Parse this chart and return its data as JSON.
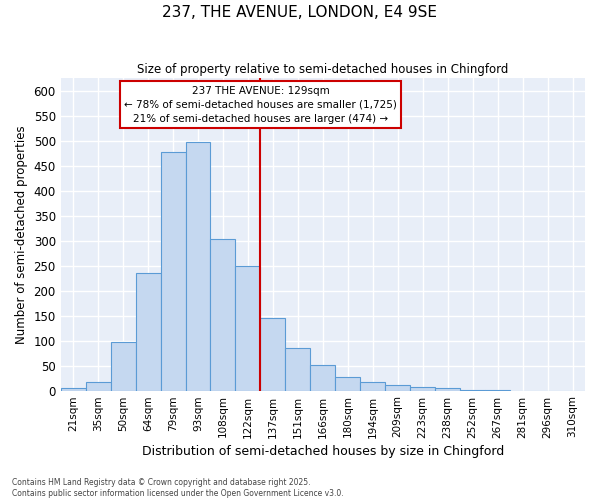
{
  "title1": "237, THE AVENUE, LONDON, E4 9SE",
  "title2": "Size of property relative to semi-detached houses in Chingford",
  "bar_labels": [
    "21sqm",
    "35sqm",
    "50sqm",
    "64sqm",
    "79sqm",
    "93sqm",
    "108sqm",
    "122sqm",
    "137sqm",
    "151sqm",
    "166sqm",
    "180sqm",
    "194sqm",
    "209sqm",
    "223sqm",
    "238sqm",
    "252sqm",
    "267sqm",
    "281sqm",
    "296sqm",
    "310sqm"
  ],
  "bar_values": [
    5,
    17,
    97,
    235,
    478,
    497,
    303,
    250,
    146,
    85,
    52,
    27,
    18,
    12,
    8,
    5,
    2,
    1,
    0,
    0,
    0
  ],
  "bar_color": "#c5d8f0",
  "bar_edge_color": "#5b9bd5",
  "vline_color": "#cc0000",
  "annotation_title": "237 THE AVENUE: 129sqm",
  "annotation_line1": "← 78% of semi-detached houses are smaller (1,725)",
  "annotation_line2": "21% of semi-detached houses are larger (474) →",
  "annotation_box_color": "#cc0000",
  "xlabel": "Distribution of semi-detached houses by size in Chingford",
  "ylabel": "Number of semi-detached properties",
  "yticks": [
    0,
    50,
    100,
    150,
    200,
    250,
    300,
    350,
    400,
    450,
    500,
    550,
    600
  ],
  "ylim": [
    0,
    625
  ],
  "footnote1": "Contains HM Land Registry data © Crown copyright and database right 2025.",
  "footnote2": "Contains public sector information licensed under the Open Government Licence v3.0.",
  "fig_bg_color": "#ffffff",
  "plot_bg_color": "#e8eef8",
  "grid_color": "#ffffff"
}
